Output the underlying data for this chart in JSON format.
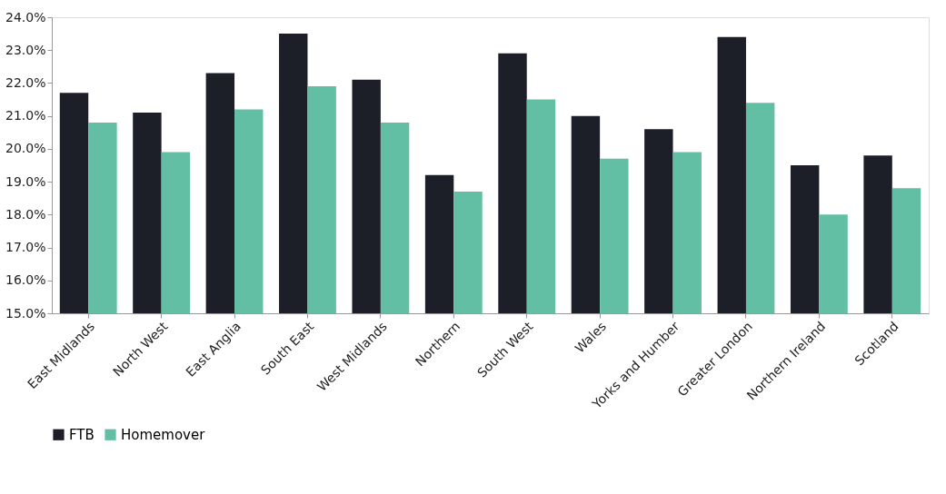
{
  "chart_data": {
    "type": "bar",
    "categories": [
      "East Midlands",
      "North West",
      "East Anglia",
      "South East",
      "West Midlands",
      "Northern",
      "South West",
      "Wales",
      "Yorks and Humber",
      "Greater London",
      "Northern Ireland",
      "Scotland"
    ],
    "series": [
      {
        "name": "FTB",
        "color": "#1c1f28",
        "values": [
          21.7,
          21.1,
          22.3,
          23.5,
          22.1,
          19.2,
          22.9,
          21.0,
          20.6,
          23.4,
          19.5,
          19.8
        ]
      },
      {
        "name": "Homemover",
        "color": "#62bfa3",
        "values": [
          20.8,
          19.9,
          21.2,
          21.9,
          20.8,
          18.7,
          21.5,
          19.7,
          19.9,
          21.4,
          18.0,
          18.8
        ]
      }
    ],
    "ylim": [
      15,
      24
    ],
    "yticks": [
      {
        "value": 15,
        "label": "15.0%"
      },
      {
        "value": 16,
        "label": "16.0%"
      },
      {
        "value": 17,
        "label": "17.0%"
      },
      {
        "value": 18,
        "label": "18.0%"
      },
      {
        "value": 19,
        "label": "19.0%"
      },
      {
        "value": 20,
        "label": "20.0%"
      },
      {
        "value": 21,
        "label": "21.0%"
      },
      {
        "value": 22,
        "label": "22.0%"
      },
      {
        "value": 23,
        "label": "23.0%"
      },
      {
        "value": 24,
        "label": "24.0%"
      }
    ],
    "grid": false,
    "legend": "bottom"
  }
}
